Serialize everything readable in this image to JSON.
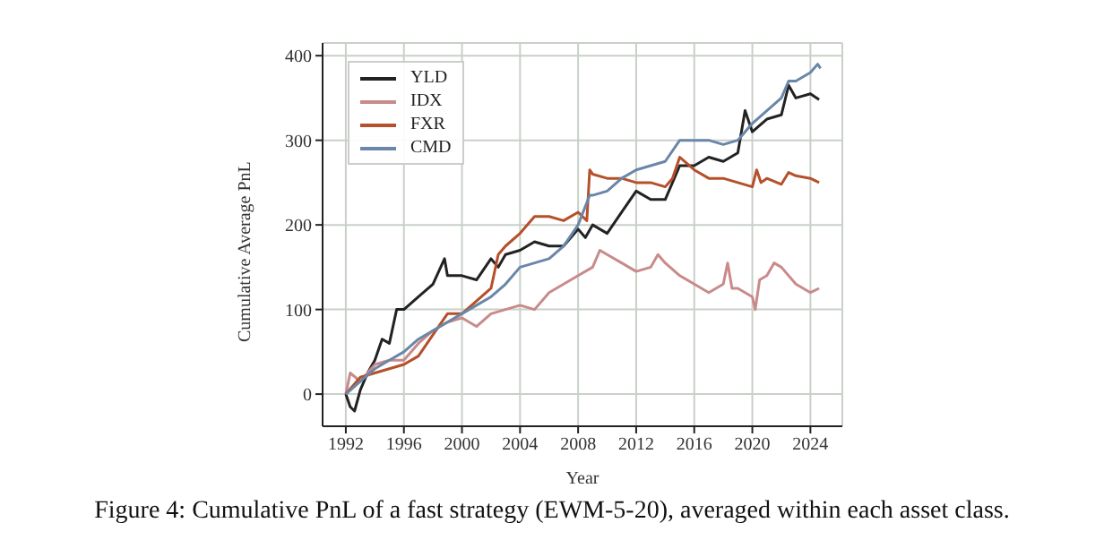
{
  "chart_data": {
    "type": "line",
    "xlabel": "Year",
    "ylabel": "Cumulative Average PnL",
    "xlim": [
      1990.4,
      2026.2
    ],
    "xticks": [
      1992,
      1996,
      2000,
      2004,
      2008,
      2012,
      2016,
      2020,
      2024
    ],
    "ylim": [
      -38,
      415
    ],
    "yticks": [
      0,
      100,
      200,
      300,
      400
    ],
    "grid": true,
    "legend": "top left",
    "marker": "none",
    "line_style": "solid",
    "annotations": [
      "Figure 4: Cumulative PnL of a fast strategy (EWM-5-20), averaged within each asset class."
    ],
    "series": [
      {
        "name": "YLD",
        "color": "#222222",
        "x": [
          1992.0,
          1992.3,
          1992.6,
          1993.0,
          1993.5,
          1994.0,
          1994.5,
          1995.0,
          1995.5,
          1996,
          1997,
          1998,
          1998.8,
          1999,
          2000,
          2001,
          2002,
          2002.5,
          2003,
          2004,
          2005,
          2006,
          2007,
          2008,
          2008.5,
          2009,
          2010,
          2011,
          2012,
          2013,
          2014,
          2015,
          2016,
          2017,
          2018,
          2019,
          2019.5,
          2020,
          2021,
          2022,
          2022.5,
          2023,
          2024,
          2024.6
        ],
        "values": [
          0,
          -15,
          -20,
          5,
          25,
          40,
          65,
          60,
          100,
          100,
          115,
          130,
          160,
          140,
          140,
          135,
          160,
          150,
          165,
          170,
          180,
          175,
          175,
          195,
          185,
          200,
          190,
          215,
          240,
          230,
          230,
          270,
          270,
          280,
          275,
          285,
          335,
          310,
          325,
          330,
          365,
          350,
          355,
          348
        ]
      },
      {
        "name": "IDX",
        "color": "#c98a8a",
        "x": [
          1992,
          1992.3,
          1993,
          1994,
          1995,
          1996,
          1997,
          1998,
          1999,
          2000,
          2001,
          2002,
          2003,
          2004,
          2005,
          2006,
          2007,
          2008,
          2009,
          2009.5,
          2010,
          2011,
          2012,
          2013,
          2013.5,
          2014,
          2015,
          2016,
          2017,
          2018,
          2018.3,
          2018.6,
          2019,
          2020,
          2020.2,
          2020.5,
          2021,
          2021.5,
          2022,
          2023,
          2024,
          2024.6
        ],
        "values": [
          0,
          25,
          15,
          35,
          40,
          40,
          60,
          75,
          85,
          90,
          80,
          95,
          100,
          105,
          100,
          120,
          130,
          140,
          150,
          170,
          165,
          155,
          145,
          150,
          165,
          155,
          140,
          130,
          120,
          130,
          155,
          125,
          125,
          115,
          100,
          135,
          140,
          155,
          150,
          130,
          120,
          125
        ]
      },
      {
        "name": "FXR",
        "color": "#b5502a",
        "x": [
          1992,
          1993,
          1994,
          1995,
          1996,
          1997,
          1998,
          1999,
          2000,
          2001,
          2002,
          2002.5,
          2003,
          2004,
          2005,
          2006,
          2007,
          2008,
          2008.6,
          2008.8,
          2009,
          2010,
          2011,
          2012,
          2013,
          2014,
          2014.5,
          2015,
          2016,
          2017,
          2018,
          2019,
          2020,
          2020.3,
          2020.6,
          2021,
          2022,
          2022.5,
          2023,
          2024,
          2024.6
        ],
        "values": [
          0,
          20,
          25,
          30,
          35,
          45,
          70,
          95,
          95,
          110,
          125,
          165,
          175,
          190,
          210,
          210,
          205,
          215,
          205,
          265,
          260,
          255,
          255,
          250,
          250,
          245,
          255,
          280,
          265,
          255,
          255,
          250,
          245,
          265,
          250,
          255,
          248,
          262,
          258,
          255,
          250
        ]
      },
      {
        "name": "CMD",
        "color": "#6a86a8",
        "x": [
          1992,
          1993,
          1994,
          1995,
          1996,
          1997,
          1998,
          1999,
          2000,
          2001,
          2002,
          2003,
          2004,
          2005,
          2006,
          2007,
          2008,
          2008.8,
          2009,
          2010,
          2011,
          2012,
          2013,
          2014,
          2015,
          2016,
          2017,
          2018,
          2019,
          2020,
          2021,
          2022,
          2022.5,
          2023,
          2024,
          2024.5,
          2024.7
        ],
        "values": [
          0,
          15,
          30,
          40,
          50,
          65,
          75,
          85,
          95,
          105,
          115,
          130,
          150,
          155,
          160,
          175,
          200,
          235,
          235,
          240,
          255,
          265,
          270,
          275,
          300,
          300,
          300,
          295,
          300,
          320,
          335,
          350,
          370,
          370,
          380,
          390,
          385
        ]
      }
    ]
  }
}
